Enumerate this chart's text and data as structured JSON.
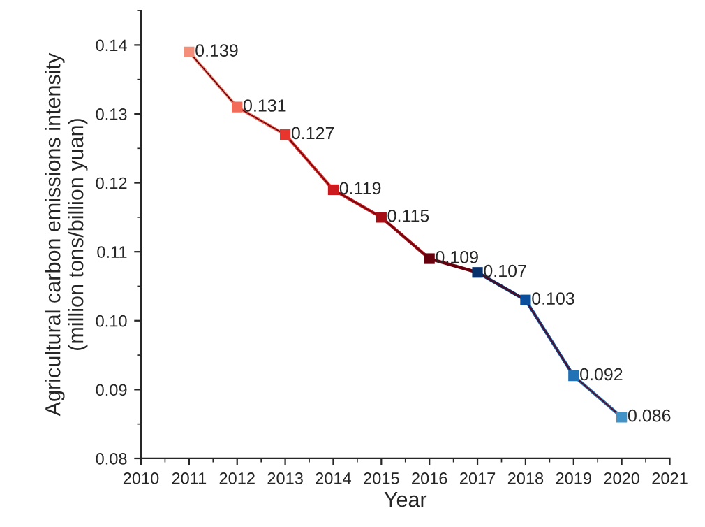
{
  "chart_data": {
    "type": "line",
    "xlabel": "Year",
    "ylabel": "Agricultural carbon emissions intensity\n(million tons/billion yuan)",
    "x": [
      2011,
      2012,
      2013,
      2014,
      2015,
      2016,
      2017,
      2018,
      2019,
      2020
    ],
    "values": [
      0.139,
      0.131,
      0.127,
      0.119,
      0.115,
      0.109,
      0.107,
      0.103,
      0.092,
      0.086
    ],
    "colors": [
      "#f4907a",
      "#f36c5a",
      "#e8352e",
      "#cc1a1e",
      "#a50f15",
      "#67000d",
      "#08306b",
      "#0b4f9c",
      "#2171b5",
      "#4192c6"
    ],
    "marker": "square",
    "line_style": "solid",
    "data_labels": true,
    "grid": false,
    "legend": false,
    "xlim": [
      2010,
      2021
    ],
    "xticks": [
      2010,
      2011,
      2012,
      2013,
      2014,
      2015,
      2016,
      2017,
      2018,
      2019,
      2020,
      2021
    ],
    "ylim": [
      0.08,
      0.145
    ],
    "yticks": [
      {
        "value": 0.08,
        "label": "0.08"
      },
      {
        "value": 0.09,
        "label": "0.09"
      },
      {
        "value": 0.1,
        "label": "0.10"
      },
      {
        "value": 0.11,
        "label": "0.11"
      },
      {
        "value": 0.12,
        "label": "0.12"
      },
      {
        "value": 0.13,
        "label": "0.13"
      },
      {
        "value": 0.14,
        "label": "0.14"
      }
    ]
  }
}
